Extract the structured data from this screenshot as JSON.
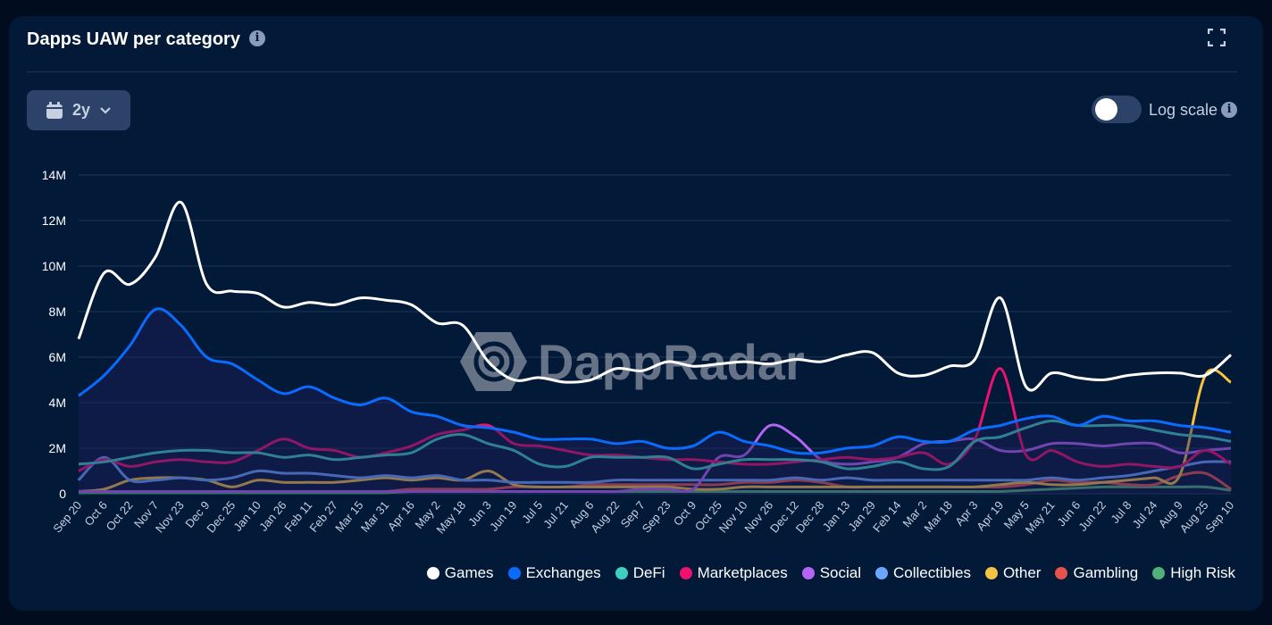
{
  "header": {
    "title": "Dapps UAW per category",
    "info_icon": "info-icon",
    "fullscreen_icon": "fullscreen-icon"
  },
  "controls": {
    "range_label": "2y",
    "range_icon": "calendar-icon",
    "chevron_icon": "chevron-down-icon",
    "log_scale_label": "Log scale",
    "log_scale_on": false
  },
  "watermark": "DappRadar",
  "chart_data": {
    "type": "line",
    "title": "",
    "xlabel": "",
    "ylabel": "",
    "ylim": [
      0,
      14000000
    ],
    "y_ticks": [
      "0",
      "2M",
      "4M",
      "6M",
      "8M",
      "10M",
      "12M",
      "14M"
    ],
    "y_tick_values": [
      0,
      2000000,
      4000000,
      6000000,
      8000000,
      10000000,
      12000000,
      14000000
    ],
    "grid": true,
    "legend_position": "bottom-right",
    "unit": "M",
    "categories": [
      "Sep 20",
      "Oct 6",
      "Oct 22",
      "Nov 7",
      "Nov 23",
      "Dec 9",
      "Dec 25",
      "Jan 10",
      "Jan 26",
      "Feb 11",
      "Feb 27",
      "Mar 15",
      "Mar 31",
      "Apr 16",
      "May 2",
      "May 18",
      "Jun 3",
      "Jun 19",
      "Jul 5",
      "Jul 21",
      "Aug 6",
      "Aug 22",
      "Sep 7",
      "Sep 23",
      "Oct 9",
      "Oct 25",
      "Nov 10",
      "Nov 26",
      "Dec 12",
      "Dec 28",
      "Jan 13",
      "Jan 29",
      "Feb 14",
      "Mar 2",
      "Mar 18",
      "Apr 3",
      "Apr 19",
      "May 5",
      "May 21",
      "Jun 6",
      "Jun 22",
      "Jul 8",
      "Jul 24",
      "Aug 9",
      "Aug 25",
      "Sep 10"
    ],
    "series": [
      {
        "name": "Games",
        "color": "#ffffff",
        "values": [
          6.8,
          9.7,
          9.2,
          10.4,
          12.8,
          9.2,
          8.9,
          8.8,
          8.2,
          8.4,
          8.3,
          8.6,
          8.5,
          8.3,
          7.5,
          7.4,
          5.8,
          5.0,
          5.1,
          4.9,
          5.0,
          5.5,
          5.4,
          5.8,
          5.6,
          5.7,
          5.8,
          5.7,
          5.9,
          5.8,
          6.1,
          6.2,
          5.3,
          5.2,
          5.6,
          5.9,
          8.6,
          4.7,
          5.3,
          5.1,
          5.0,
          5.2,
          5.3,
          5.3,
          5.2,
          6.1
        ]
      },
      {
        "name": "Exchanges",
        "color": "#0a6cff",
        "values": [
          4.3,
          5.2,
          6.5,
          8.1,
          7.4,
          6.0,
          5.7,
          5.0,
          4.4,
          4.7,
          4.2,
          3.9,
          4.2,
          3.6,
          3.4,
          3.0,
          2.9,
          2.7,
          2.4,
          2.4,
          2.4,
          2.2,
          2.3,
          2.0,
          2.1,
          2.7,
          2.3,
          2.1,
          1.8,
          1.8,
          2.0,
          2.1,
          2.5,
          2.3,
          2.3,
          2.8,
          3.0,
          3.3,
          3.4,
          3.0,
          3.4,
          3.2,
          3.2,
          3.0,
          2.9,
          2.7
        ]
      },
      {
        "name": "DeFi",
        "color": "#3ecfc0",
        "values": [
          1.3,
          1.4,
          1.6,
          1.8,
          1.9,
          1.9,
          1.8,
          1.8,
          1.6,
          1.7,
          1.5,
          1.6,
          1.7,
          1.8,
          2.4,
          2.6,
          2.2,
          1.9,
          1.3,
          1.2,
          1.6,
          1.6,
          1.6,
          1.6,
          1.1,
          1.3,
          1.5,
          1.5,
          1.5,
          1.4,
          1.1,
          1.2,
          1.4,
          1.1,
          1.2,
          2.3,
          2.5,
          2.9,
          3.2,
          3.0,
          3.0,
          3.0,
          2.8,
          2.6,
          2.5,
          2.3
        ]
      },
      {
        "name": "Marketplaces",
        "color": "#f0106e",
        "values": [
          1.0,
          1.5,
          1.2,
          1.4,
          1.5,
          1.4,
          1.4,
          1.9,
          2.4,
          2.0,
          1.9,
          1.6,
          1.8,
          2.1,
          2.6,
          2.8,
          3.0,
          2.2,
          2.1,
          1.9,
          1.7,
          1.7,
          1.6,
          1.5,
          1.5,
          1.4,
          1.3,
          1.3,
          1.4,
          1.5,
          1.6,
          1.5,
          1.6,
          1.8,
          1.3,
          2.4,
          5.5,
          1.7,
          1.9,
          1.4,
          1.2,
          1.3,
          1.2,
          1.2,
          1.9,
          1.3
        ]
      },
      {
        "name": "Social",
        "color": "#b565f5",
        "values": [
          0.1,
          0.1,
          0.1,
          0.1,
          0.1,
          0.1,
          0.1,
          0.1,
          0.1,
          0.1,
          0.1,
          0.1,
          0.1,
          0.1,
          0.1,
          0.1,
          0.1,
          0.1,
          0.1,
          0.1,
          0.1,
          0.1,
          0.2,
          0.2,
          0.2,
          1.6,
          1.7,
          3.0,
          2.5,
          1.5,
          1.3,
          1.4,
          1.6,
          2.2,
          2.3,
          2.4,
          1.9,
          1.9,
          2.2,
          2.2,
          2.1,
          2.2,
          2.2,
          1.8,
          1.9,
          2.0
        ]
      },
      {
        "name": "Collectibles",
        "color": "#6aa6ff",
        "values": [
          0.6,
          1.6,
          0.6,
          0.6,
          0.7,
          0.6,
          0.7,
          1.0,
          0.9,
          0.9,
          0.8,
          0.7,
          0.8,
          0.7,
          0.8,
          0.6,
          0.6,
          0.5,
          0.5,
          0.5,
          0.5,
          0.6,
          0.6,
          0.6,
          0.6,
          0.6,
          0.6,
          0.6,
          0.7,
          0.6,
          0.7,
          0.6,
          0.6,
          0.6,
          0.6,
          0.6,
          0.6,
          0.6,
          0.7,
          0.6,
          0.7,
          0.8,
          1.0,
          1.2,
          1.4,
          1.4
        ]
      },
      {
        "name": "Other",
        "color": "#f5c242",
        "values": [
          0.1,
          0.2,
          0.6,
          0.7,
          0.7,
          0.6,
          0.3,
          0.6,
          0.5,
          0.5,
          0.5,
          0.6,
          0.7,
          0.6,
          0.7,
          0.6,
          1.0,
          0.4,
          0.3,
          0.3,
          0.3,
          0.3,
          0.3,
          0.3,
          0.2,
          0.2,
          0.3,
          0.3,
          0.3,
          0.3,
          0.3,
          0.3,
          0.3,
          0.3,
          0.3,
          0.3,
          0.4,
          0.5,
          0.4,
          0.4,
          0.5,
          0.6,
          0.7,
          0.8,
          5.2,
          4.9
        ]
      },
      {
        "name": "Gambling",
        "color": "#e5534b",
        "values": [
          0.1,
          0.1,
          0.1,
          0.1,
          0.1,
          0.1,
          0.1,
          0.1,
          0.1,
          0.1,
          0.1,
          0.1,
          0.1,
          0.2,
          0.2,
          0.2,
          0.2,
          0.3,
          0.3,
          0.3,
          0.4,
          0.4,
          0.4,
          0.4,
          0.4,
          0.4,
          0.5,
          0.5,
          0.6,
          0.5,
          0.3,
          0.3,
          0.3,
          0.3,
          0.3,
          0.3,
          0.3,
          0.4,
          0.6,
          0.5,
          0.5,
          0.4,
          0.4,
          0.8,
          0.9,
          0.2
        ]
      },
      {
        "name": "High Risk",
        "color": "#4fb07a",
        "values": [
          0.05,
          0.05,
          0.05,
          0.05,
          0.05,
          0.05,
          0.05,
          0.05,
          0.05,
          0.05,
          0.05,
          0.05,
          0.05,
          0.1,
          0.1,
          0.1,
          0.1,
          0.1,
          0.1,
          0.1,
          0.1,
          0.1,
          0.1,
          0.1,
          0.1,
          0.1,
          0.1,
          0.1,
          0.1,
          0.1,
          0.1,
          0.1,
          0.1,
          0.1,
          0.1,
          0.1,
          0.1,
          0.15,
          0.2,
          0.25,
          0.3,
          0.3,
          0.3,
          0.3,
          0.3,
          0.15
        ]
      }
    ]
  }
}
